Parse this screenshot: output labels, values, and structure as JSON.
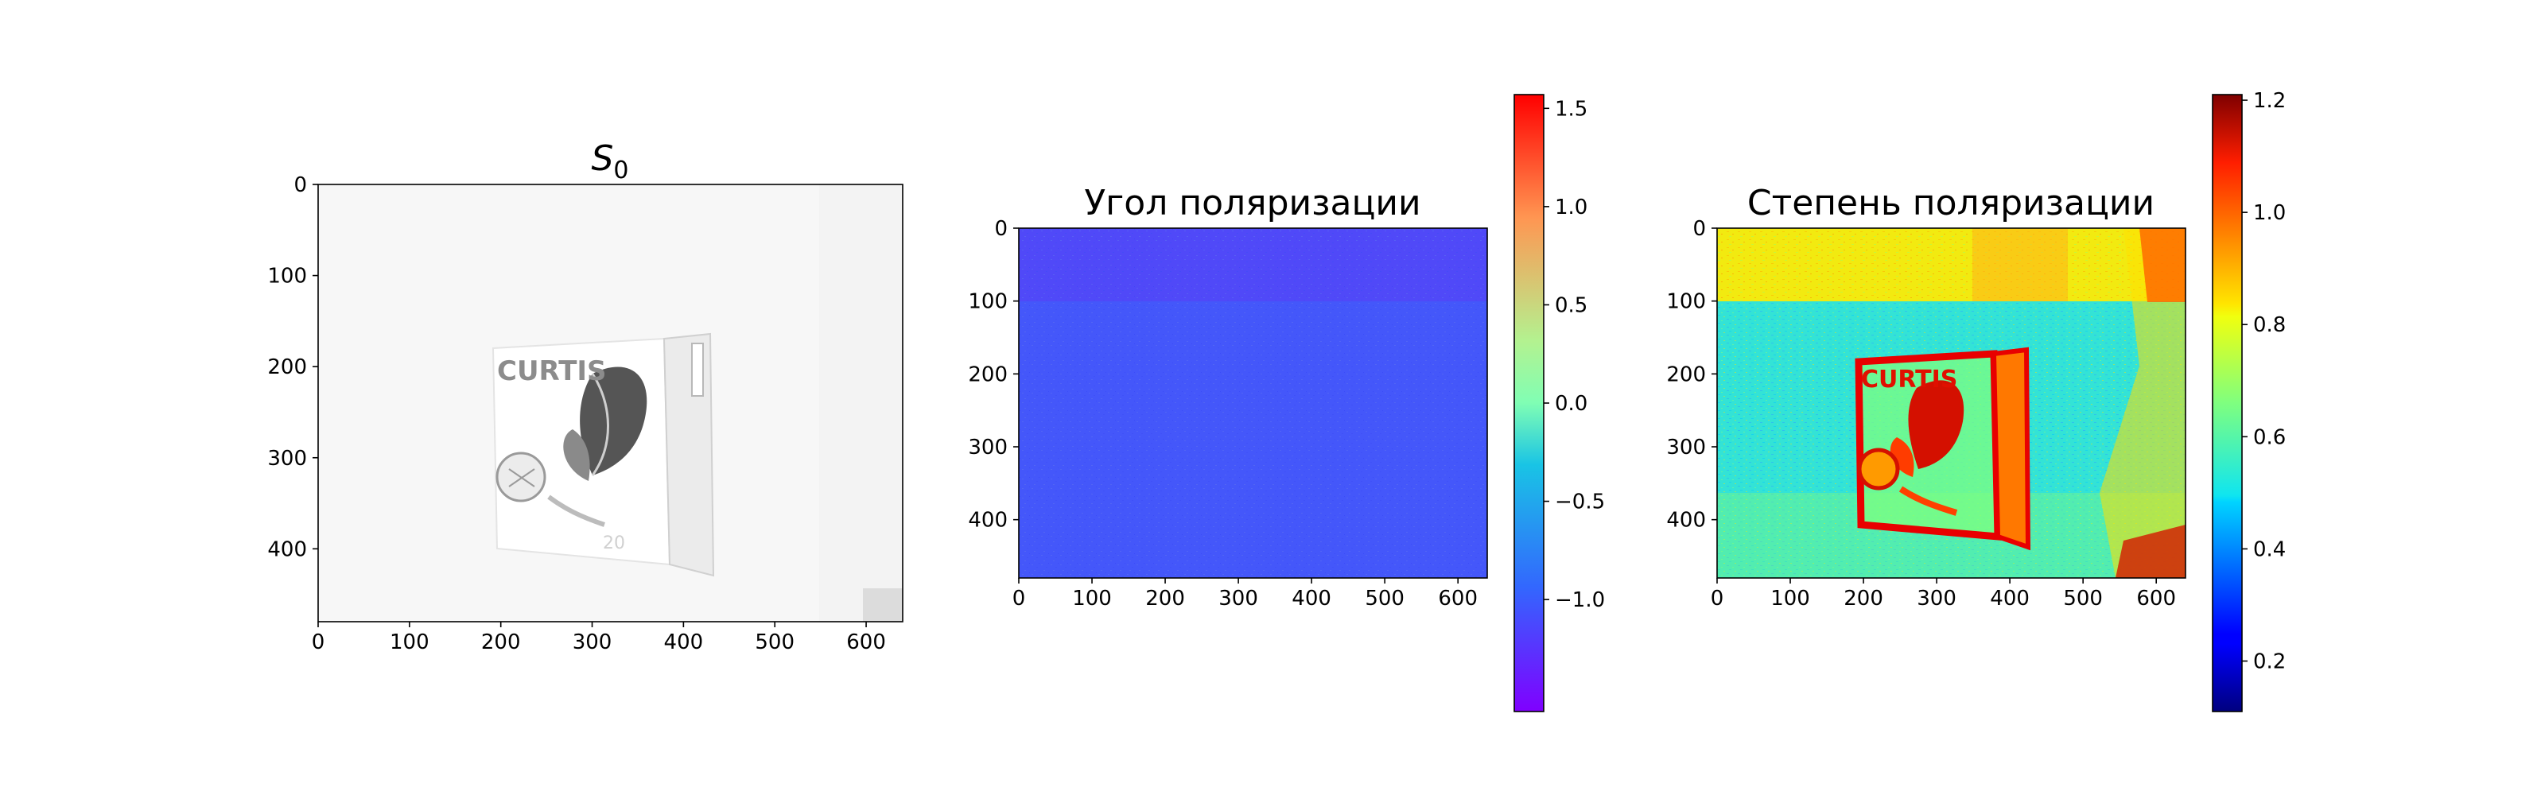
{
  "chart_data": [
    {
      "type": "heatmap",
      "title": "S₀",
      "title_main": "S",
      "title_sub": "0",
      "colormap": "gray_r",
      "xlim": [
        0,
        640
      ],
      "ylim": [
        480,
        0
      ],
      "xticks": [
        0,
        100,
        200,
        300,
        400,
        500,
        600
      ],
      "yticks": [
        0,
        100,
        200,
        300,
        400
      ],
      "xticklabels": [
        "0",
        "100",
        "200",
        "300",
        "400",
        "500",
        "600"
      ],
      "yticklabels": [
        "0",
        "100",
        "200",
        "300",
        "400"
      ],
      "image_text": [
        "CURTIS",
        "20"
      ],
      "colorbar": false,
      "background_level": 0.03,
      "box_region": {
        "x": [
          195,
          400
        ],
        "y": [
          170,
          430
        ]
      }
    },
    {
      "type": "heatmap",
      "title": "Угол поляризации",
      "colormap": "rainbow",
      "xlim": [
        0,
        640
      ],
      "ylim": [
        480,
        0
      ],
      "xticks": [
        0,
        100,
        200,
        300,
        400,
        500,
        600
      ],
      "yticks": [
        0,
        100,
        200,
        300,
        400
      ],
      "xticklabels": [
        "0",
        "100",
        "200",
        "300",
        "400",
        "500",
        "600"
      ],
      "yticklabels": [
        "0",
        "100",
        "200",
        "300",
        "400"
      ],
      "colorbar": true,
      "clim": [
        -1.57,
        1.57
      ],
      "cbar_ticks": [
        1.5,
        1.0,
        0.5,
        0.0,
        -0.5,
        -1.0
      ],
      "cbar_ticklabels": [
        "1.5",
        "1.0",
        "0.5",
        "0.0",
        "−0.5",
        "−1.0"
      ],
      "regions": [
        {
          "rows": [
            0,
            100
          ],
          "value": -1.27
        },
        {
          "rows": [
            100,
            480
          ],
          "value": -1.17
        }
      ]
    },
    {
      "type": "heatmap",
      "title": "Степень поляризации",
      "colormap": "jet",
      "xlim": [
        0,
        640
      ],
      "ylim": [
        480,
        0
      ],
      "xticks": [
        0,
        100,
        200,
        300,
        400,
        500,
        600
      ],
      "yticks": [
        0,
        100,
        200,
        300,
        400
      ],
      "xticklabels": [
        "0",
        "100",
        "200",
        "300",
        "400",
        "500",
        "600"
      ],
      "yticklabels": [
        "0",
        "100",
        "200",
        "300",
        "400"
      ],
      "image_text": [
        "CURTIS"
      ],
      "colorbar": true,
      "clim": [
        0.11,
        1.21
      ],
      "cbar_ticks": [
        1.2,
        1.0,
        0.8,
        0.6,
        0.4,
        0.2
      ],
      "cbar_ticklabels": [
        "1.2",
        "1.0",
        "0.8",
        "0.6",
        "0.4",
        "0.2"
      ],
      "regions": [
        {
          "rows": [
            0,
            100
          ],
          "value": 0.82
        },
        {
          "rows": [
            100,
            480
          ],
          "value": 0.55
        },
        {
          "name": "box",
          "x": [
            195,
            400
          ],
          "y": [
            170,
            430
          ],
          "value": 0.62
        },
        {
          "name": "box-edges",
          "value": 1.08
        }
      ]
    }
  ]
}
